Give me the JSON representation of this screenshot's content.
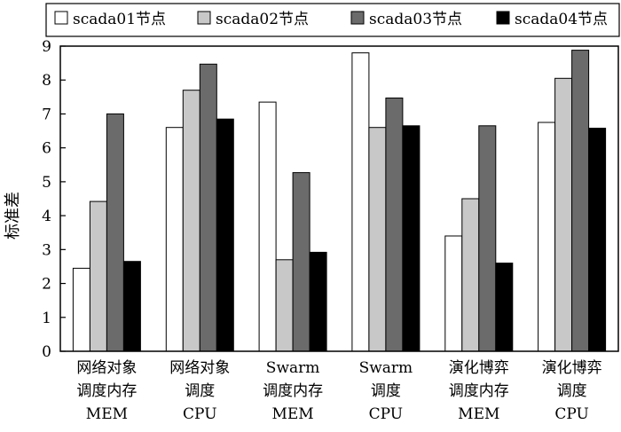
{
  "chart_data": {
    "type": "bar",
    "ylabel": "标准差",
    "xlabel": "",
    "title": "",
    "ylim": [
      0,
      9
    ],
    "yticks": [
      "0",
      "1",
      "2",
      "3",
      "4",
      "5",
      "6",
      "7",
      "8",
      "9"
    ],
    "grid": false,
    "legend_position": "top",
    "categories": [
      [
        "网络对象",
        "调度内存",
        "MEM"
      ],
      [
        "网络对象",
        "调度",
        "CPU"
      ],
      [
        "Swarm",
        "调度内存",
        "MEM"
      ],
      [
        "Swarm",
        "调度",
        "CPU"
      ],
      [
        "演化博弈",
        "调度内存",
        "MEM"
      ],
      [
        "演化博弈",
        "调度",
        "CPU"
      ]
    ],
    "series": [
      {
        "name": "scada01节点",
        "color": "#ffffff",
        "values": [
          2.45,
          6.6,
          7.35,
          8.8,
          3.4,
          6.75
        ]
      },
      {
        "name": "scada02节点",
        "color": "#c8c8c8",
        "values": [
          4.42,
          7.7,
          2.7,
          6.6,
          4.5,
          8.05
        ]
      },
      {
        "name": "scada03节点",
        "color": "#6b6b6b",
        "values": [
          7.0,
          8.47,
          5.27,
          7.47,
          6.65,
          8.88
        ]
      },
      {
        "name": "scada04节点",
        "color": "#000000",
        "values": [
          2.65,
          6.85,
          2.92,
          6.65,
          2.6,
          6.58
        ]
      }
    ]
  }
}
